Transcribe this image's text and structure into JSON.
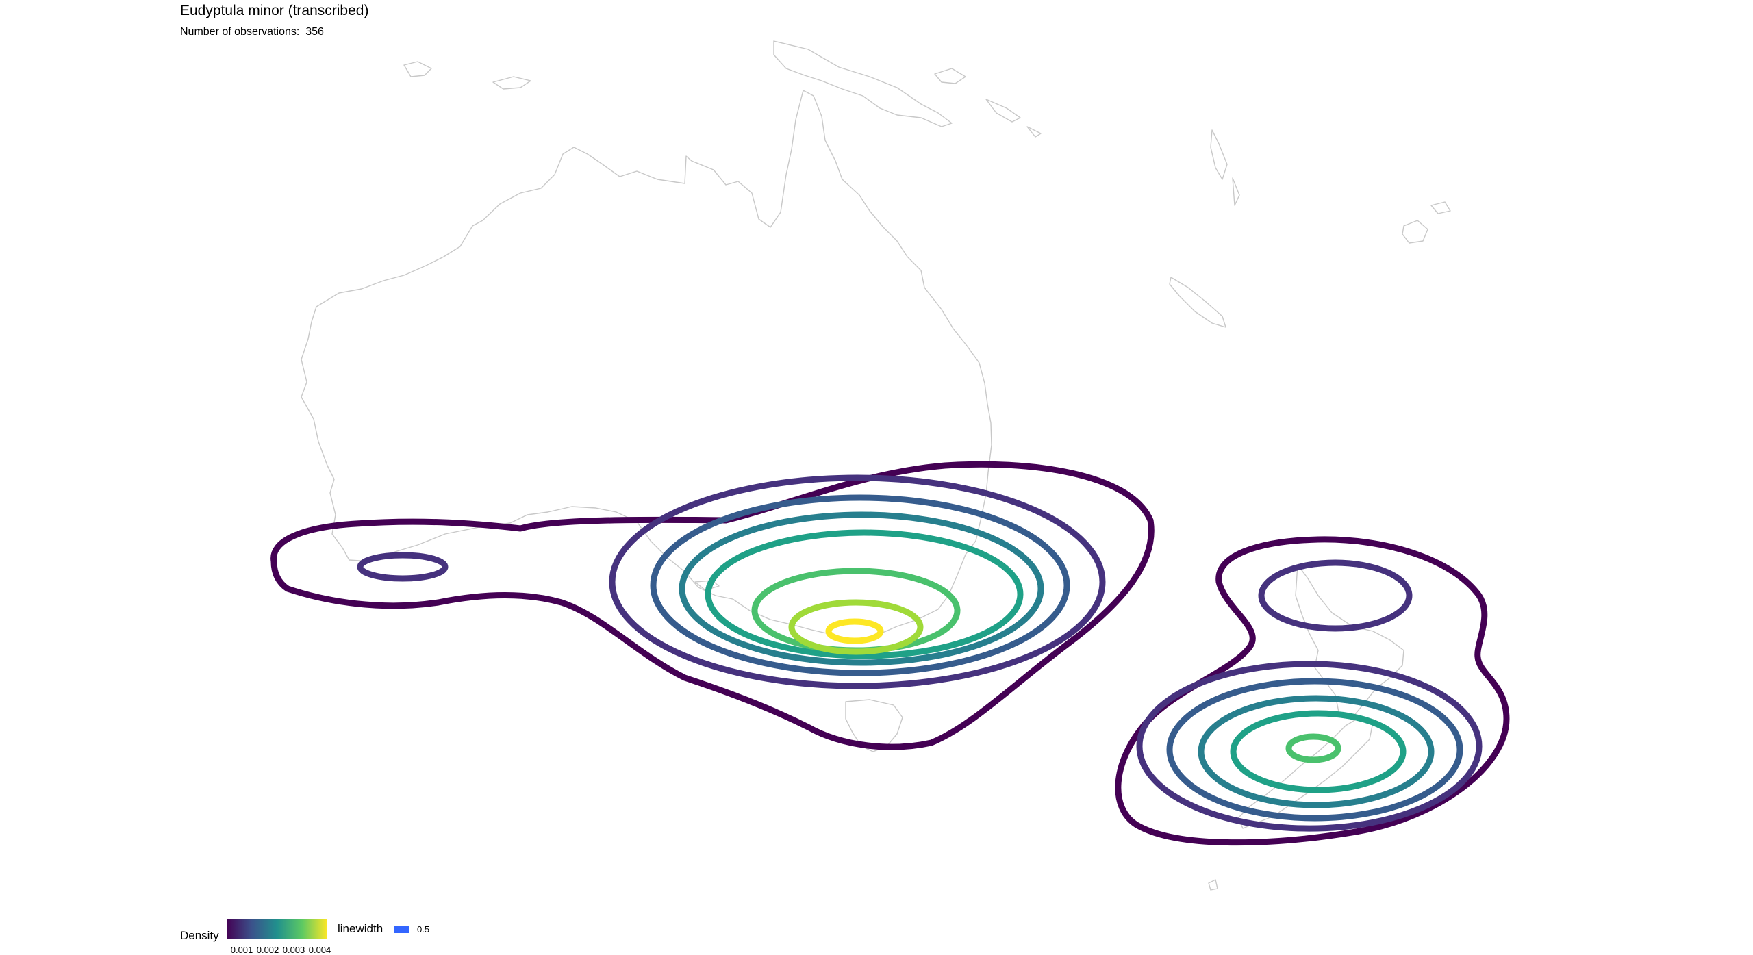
{
  "title": "Eudyptula minor (transcribed)",
  "subtitle_label": "Number of observations:",
  "observations": "356",
  "map": {
    "background": "#ffffff",
    "coastline_color": "#c8c8c8",
    "regions": [
      "Australia",
      "Tasmania",
      "New Zealand",
      "New Guinea",
      "New Caledonia",
      "Fiji"
    ]
  },
  "chart_data": {
    "type": "contour",
    "fill_variable": "Density",
    "colormap": "viridis",
    "levels": [
      0.0005,
      0.001,
      0.0015,
      0.002,
      0.0025,
      0.003,
      0.0035,
      0.004
    ],
    "level_colors": [
      "#440154",
      "#46327e",
      "#365c8d",
      "#277f8e",
      "#1fa187",
      "#4ac16d",
      "#a0da39",
      "#fde725"
    ],
    "peaks": [
      {
        "region": "south-eastern Australia (Victoria / Bass Strait)",
        "max_density": 0.004
      },
      {
        "region": "southern New Zealand (Otago)",
        "max_density": 0.0025
      },
      {
        "region": "south-western Australia",
        "max_density": 0.001
      },
      {
        "region": "northern New Zealand",
        "max_density": 0.001
      }
    ]
  },
  "legend": {
    "density_title": "Density",
    "ticks": [
      "0.001",
      "0.002",
      "0.003",
      "0.004"
    ],
    "linewidth_title": "linewidth",
    "linewidth_value": "0.5",
    "linewidth_color": "#3366ff"
  }
}
